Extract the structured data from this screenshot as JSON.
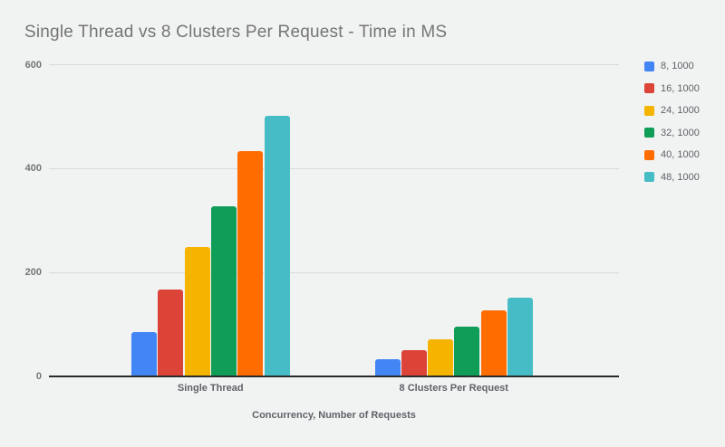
{
  "title": "Single Thread vs 8 Clusters Per Request - Time in MS",
  "colors": {
    "background": "#f1f2f2",
    "title_text": "#757575",
    "tick_text": "#757575",
    "label_text": "#5f6368",
    "gridline": "#d9d9d9",
    "axis_line": "#2b2b2b"
  },
  "chart_data": {
    "type": "bar",
    "title": "Single Thread vs 8 Clusters Per Request - Time in MS",
    "xlabel": "Concurrency, Number of Requests",
    "ylabel": "",
    "categories": [
      "Single Thread",
      "8 Clusters Per Request"
    ],
    "series": [
      {
        "name": "8, 1000",
        "color": "#4285f4",
        "values": [
          85,
          33
        ]
      },
      {
        "name": "16, 1000",
        "color": "#db4437",
        "values": [
          166,
          49
        ]
      },
      {
        "name": "24, 1000",
        "color": "#f4b400",
        "values": [
          248,
          70
        ]
      },
      {
        "name": "32, 1000",
        "color": "#0f9d58",
        "values": [
          327,
          95
        ]
      },
      {
        "name": "40, 1000",
        "color": "#ff6d01",
        "values": [
          432,
          127
        ]
      },
      {
        "name": "48, 1000",
        "color": "#46bdc6",
        "values": [
          500,
          150
        ]
      }
    ],
    "y_ticks": [
      0,
      200,
      400,
      600
    ],
    "ylim": [
      0,
      600
    ],
    "grid": true,
    "legend_position": "right"
  }
}
